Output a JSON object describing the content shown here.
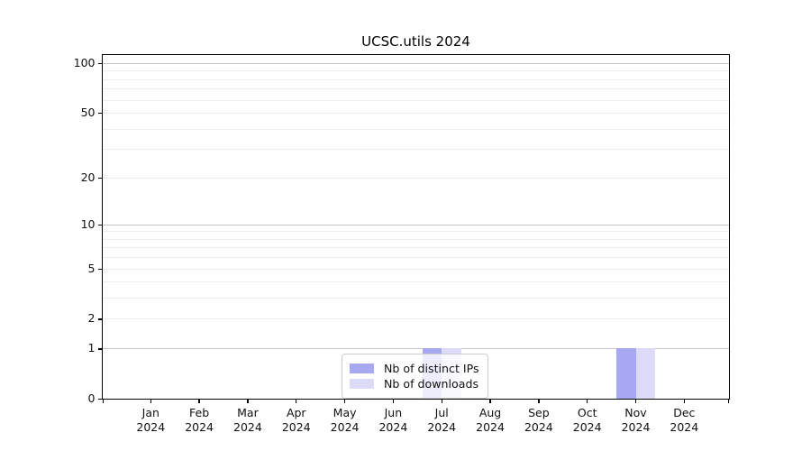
{
  "chart_data": {
    "type": "bar",
    "title": "UCSC.utils 2024",
    "x": {
      "categories": [
        "Jan",
        "Feb",
        "Mar",
        "Apr",
        "May",
        "Jun",
        "Jul",
        "Aug",
        "Sep",
        "Oct",
        "Nov",
        "Dec"
      ],
      "year_label": "2024"
    },
    "y_axis": {
      "scale": "log1p",
      "range": [
        0,
        100
      ],
      "labeled_ticks": [
        0,
        1,
        2,
        5,
        10,
        20,
        50,
        100
      ],
      "major_gridlines": [
        1,
        10,
        100
      ],
      "minor_gridlines": [
        2,
        3,
        4,
        5,
        6,
        7,
        8,
        9,
        20,
        30,
        40,
        50,
        60,
        70,
        80,
        90
      ]
    },
    "series": [
      {
        "name": "Nb of distinct IPs",
        "color": "#a7a7f2",
        "values": [
          0,
          0,
          0,
          0,
          0,
          0,
          1,
          0,
          0,
          0,
          1,
          0
        ]
      },
      {
        "name": "Nb of downloads",
        "color": "#dcdcf8",
        "values": [
          0,
          0,
          0,
          0,
          0,
          0,
          1,
          0,
          0,
          0,
          1,
          0
        ]
      }
    ],
    "legend": {
      "position": "lower-center",
      "background": "rgba(255,255,255,0.8)",
      "border_color": "#cccccc"
    },
    "grid": {
      "major_color": "#c3c3c3",
      "minor_color": "#ececec"
    },
    "spine_color": "#000000"
  }
}
